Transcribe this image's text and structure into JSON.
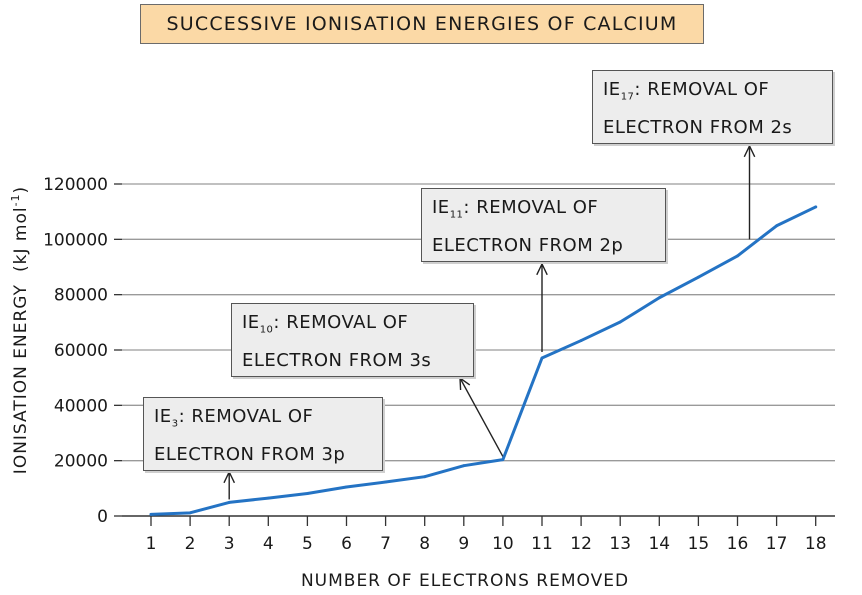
{
  "title": "SUCCESSIVE IONISATION ENERGIES OF CALCIUM",
  "chart_data": {
    "type": "line",
    "xlabel": "NUMBER OF ELECTRONS REMOVED",
    "ylabel": "IONISATION ENERGY (kJ mol^-1)",
    "ylabel_main": "IONISATION ENERGY",
    "ylabel_unit": "(kJ mol",
    "ylabel_exp": "-1",
    "ylabel_close": ")",
    "x_ticks": [
      "1",
      "2",
      "3",
      "4",
      "5",
      "6",
      "7",
      "8",
      "9",
      "10",
      "11",
      "12",
      "13",
      "14",
      "15",
      "16",
      "17",
      "18"
    ],
    "y_ticks": [
      "0",
      "20000",
      "40000",
      "60000",
      "80000",
      "100000",
      "120000"
    ],
    "ylim": [
      0,
      120000
    ],
    "grid": "horizontal",
    "series": [
      {
        "color": "#2473c4",
        "x": [
          1,
          2,
          3,
          4,
          5,
          6,
          7,
          8,
          9,
          10,
          11,
          12,
          13,
          14,
          15,
          16,
          17,
          18
        ],
        "y": [
          590,
          1145,
          4910,
          6474,
          8144,
          10496,
          12272,
          14207,
          18191,
          20385,
          57110,
          63410,
          70110,
          78890,
          86310,
          94000,
          104900,
          111711
        ]
      }
    ],
    "annotations": [
      {
        "prefix": "IE",
        "sub": "3",
        "line1": ": REMOVAL  OF",
        "line2": "ELECTRON  FROM  3p",
        "x": 3
      },
      {
        "prefix": "IE",
        "sub": "10",
        "line1": ": REMOVAL  OF",
        "line2": "ELECTRON  FROM  3s",
        "x": 10
      },
      {
        "prefix": "IE",
        "sub": "11",
        "line1": ": REMOVAL  OF",
        "line2": "ELECTRON  FROM  2p",
        "x": 11
      },
      {
        "prefix": "IE",
        "sub": "17",
        "line1": ": REMOVAL  OF",
        "line2": "ELECTRON  FROM  2s",
        "x": 17
      }
    ]
  }
}
